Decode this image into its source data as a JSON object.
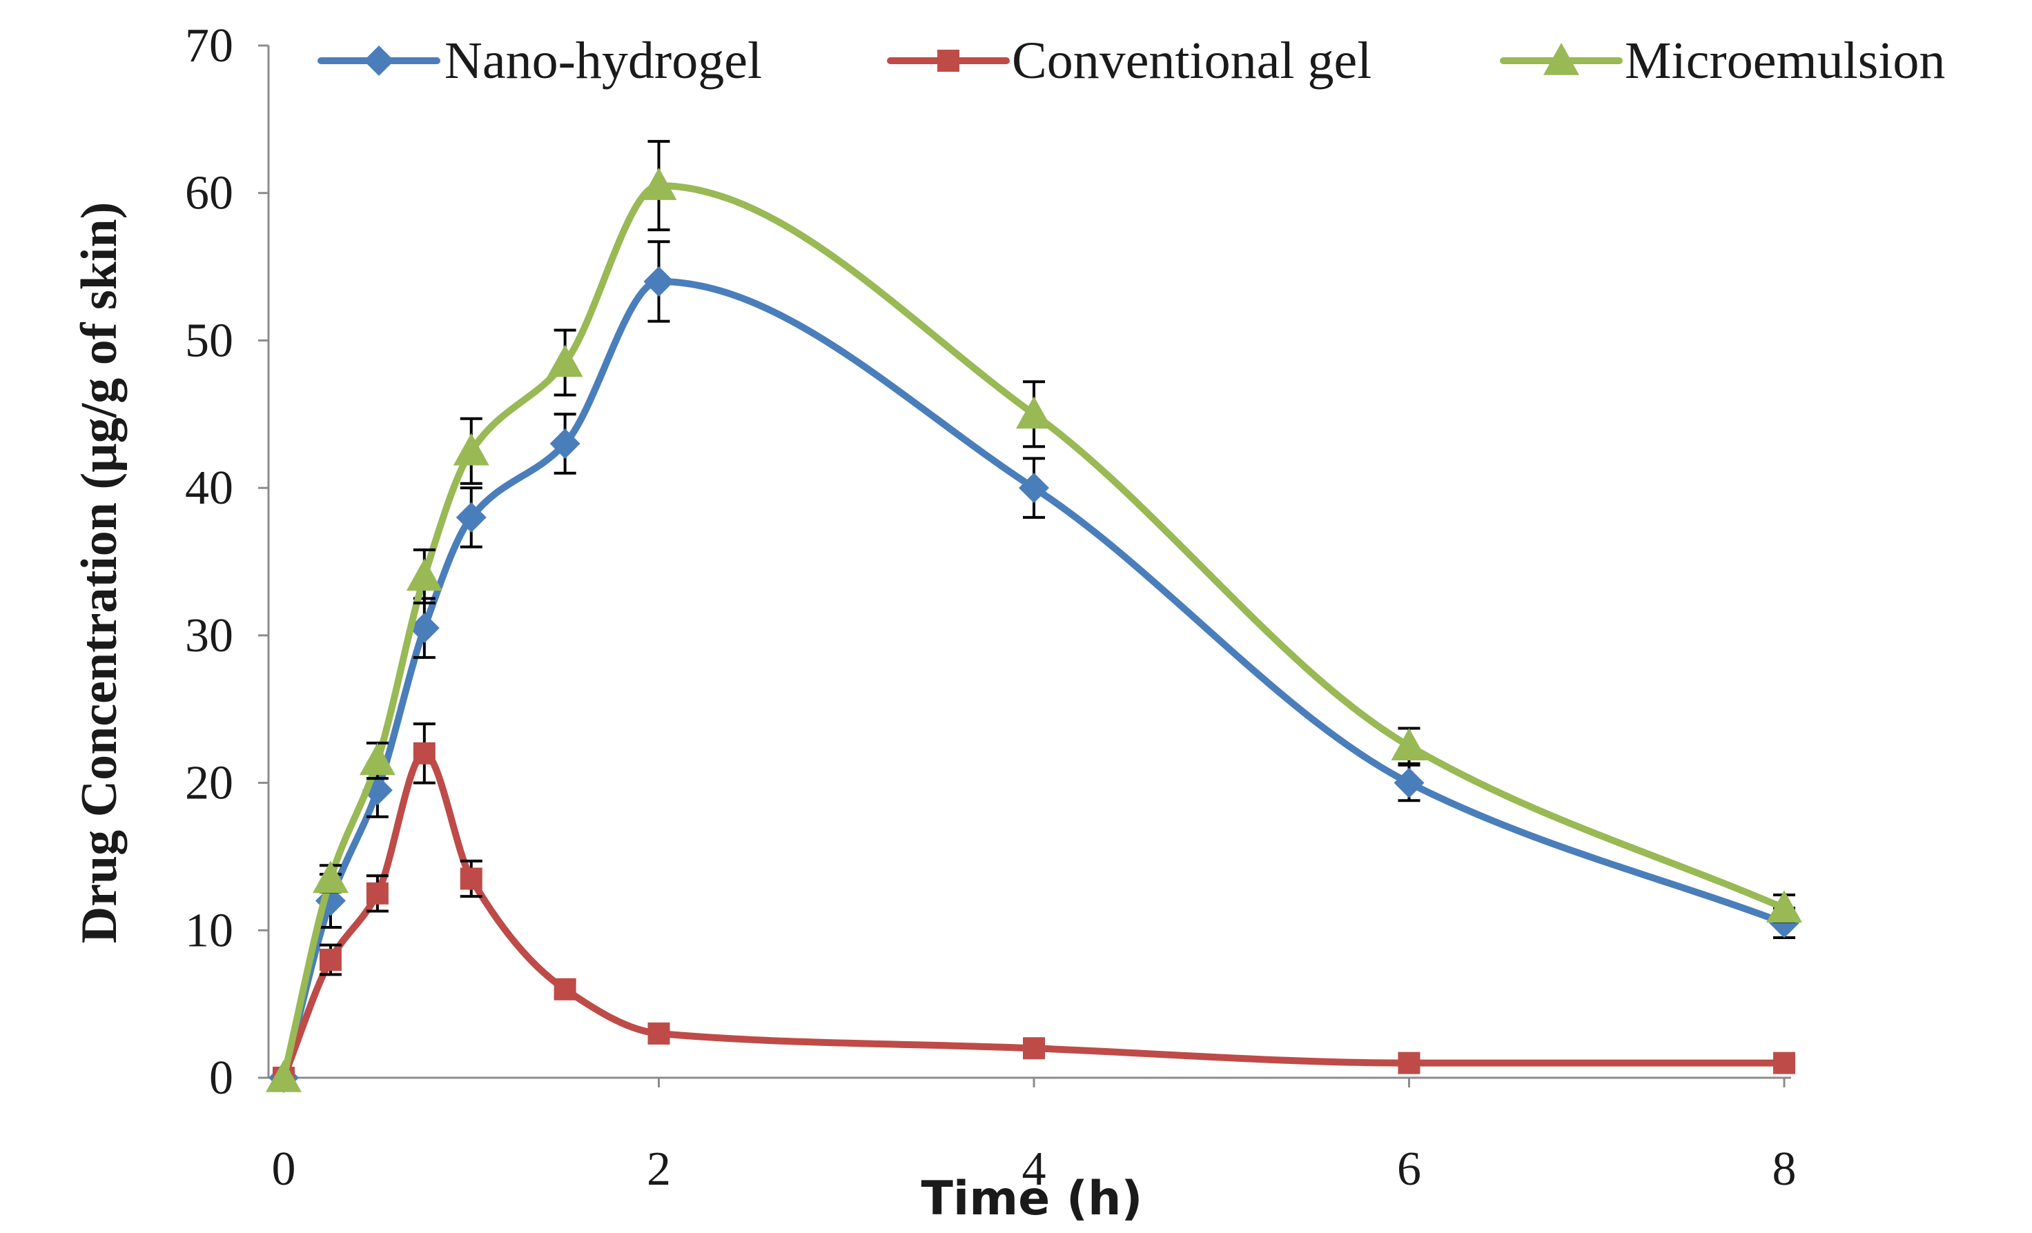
{
  "chart_data": {
    "type": "line",
    "title": "",
    "xlabel": "Time (h)",
    "ylabel": "Drug Concentration (µg/g of skin)",
    "xlim": [
      0,
      8
    ],
    "ylim": [
      0,
      70
    ],
    "xticks": [
      0,
      2,
      4,
      6,
      8
    ],
    "yticks": [
      0,
      10,
      20,
      30,
      40,
      50,
      60,
      70
    ],
    "grid": false,
    "legend_position": "top",
    "series": [
      {
        "name": "Nano-hydrogel",
        "color": "#4a7ebb",
        "marker": "diamond",
        "x": [
          0,
          0.25,
          0.5,
          0.75,
          1,
          1.5,
          2,
          4,
          6,
          8
        ],
        "y": [
          0,
          12,
          19.5,
          30.5,
          38,
          43,
          54,
          40,
          20,
          10.5
        ],
        "error": [
          0,
          1.8,
          1.8,
          2,
          2,
          2,
          2.7,
          2,
          1.2,
          1
        ]
      },
      {
        "name": "Conventional gel",
        "color": "#be4b48",
        "marker": "square",
        "x": [
          0,
          0.25,
          0.5,
          0.75,
          1,
          1.5,
          2,
          4,
          6,
          8
        ],
        "y": [
          0,
          8,
          12.5,
          22,
          13.5,
          6,
          3,
          2,
          1,
          1
        ],
        "error": [
          0,
          1,
          1.2,
          2,
          1.2,
          0.5,
          0.3,
          0.2,
          0.1,
          0.1
        ]
      },
      {
        "name": "Microemulsion",
        "color": "#98b954",
        "marker": "triangle",
        "x": [
          0,
          0.25,
          0.5,
          0.75,
          1,
          1.5,
          2,
          4,
          6,
          8
        ],
        "y": [
          0,
          13.5,
          21.5,
          34,
          42.5,
          48.5,
          60.5,
          45,
          22.5,
          11.5
        ],
        "error": [
          0,
          0.9,
          1.2,
          1.8,
          2.2,
          2.2,
          3,
          2.2,
          1.2,
          0.9
        ]
      }
    ]
  }
}
